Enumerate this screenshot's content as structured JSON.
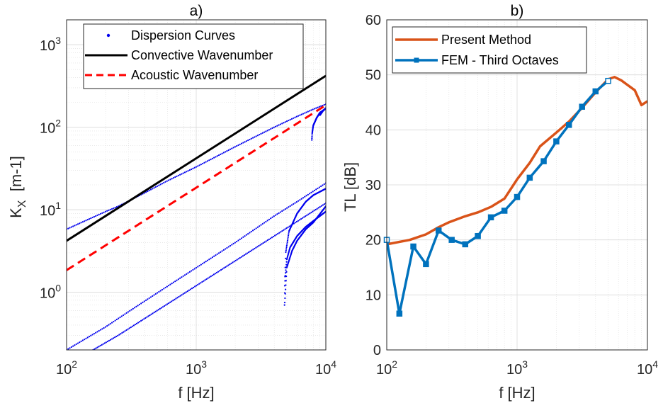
{
  "chart_data": [
    {
      "panel": "a",
      "type": "line",
      "title": "a)",
      "xlabel": "f [Hz]",
      "ylabel": "K_X [m-1]",
      "ylabel_main": "K",
      "ylabel_sub": "X",
      "ylabel_rest": "  [m-1]",
      "xscale": "log",
      "yscale": "log",
      "xlim": [
        100,
        10000
      ],
      "ylim": [
        0.2,
        2000
      ],
      "grid": true,
      "legend_position": "top",
      "x_ticks": [
        {
          "value": 100,
          "base": "10",
          "exp": "2"
        },
        {
          "value": 1000,
          "base": "10",
          "exp": "3"
        },
        {
          "value": 10000,
          "base": "10",
          "exp": "4"
        }
      ],
      "y_ticks": [
        {
          "value": 1,
          "base": "10",
          "exp": "0"
        },
        {
          "value": 10,
          "base": "10",
          "exp": "1"
        },
        {
          "value": 100,
          "base": "10",
          "exp": "2"
        },
        {
          "value": 1000,
          "base": "10",
          "exp": "3"
        }
      ],
      "series": [
        {
          "name": "Dispersion Curves",
          "style": "dots",
          "color": "#0000ee",
          "curves": [
            {
              "x": [
                100,
                200,
                250,
                300,
                400,
                600,
                1000,
                2000,
                4000,
                6000,
                8000,
                10000
              ],
              "y": [
                5.8,
                9.5,
                11.0,
                12.7,
                16.0,
                22.4,
                33.0,
                58.0,
                100.0,
                135.0,
                165.0,
                190.0
              ]
            },
            {
              "x": [
                160,
                250,
                400,
                600,
                1000,
                2000,
                4000,
                6000,
                10000
              ],
              "y": [
                0.2,
                0.3,
                0.48,
                0.72,
                1.2,
                2.4,
                4.8,
                7.2,
                12.0
              ]
            },
            {
              "x": [
                100,
                200,
                300,
                400,
                500,
                700,
                1000,
                2000,
                4000,
                6000,
                10000
              ],
              "y": [
                0.2,
                0.38,
                0.58,
                0.78,
                0.98,
                1.38,
                1.98,
                4.0,
                8.4,
                12.5,
                21.0
              ]
            },
            {
              "x": [
                4800,
                4850,
                5000,
                5300,
                6000,
                7000,
                8000,
                10000
              ],
              "y": [
                0.7,
                1.5,
                2.5,
                3.5,
                4.8,
                6.2,
                7.3,
                9.5
              ]
            },
            {
              "x": [
                4820,
                4900,
                5200,
                6000,
                7000,
                8000,
                10000
              ],
              "y": [
                1.2,
                3.0,
                5.5,
                9.0,
                12.5,
                15.0,
                18.0
              ]
            },
            {
              "x": [
                4820,
                5000,
                5500,
                6000,
                7000,
                8000,
                10000
              ],
              "y": [
                0.75,
                2.0,
                3.2,
                4.2,
                5.8,
                7.0,
                11.0
              ]
            },
            {
              "x": [
                7800,
                7850,
                8000,
                8500,
                9000,
                10000
              ],
              "y": [
                70,
                85,
                105,
                130,
                150,
                168
              ]
            },
            {
              "x": [
                9000,
                9500,
                10000
              ],
              "y": [
                140,
                158,
                170
              ]
            }
          ]
        },
        {
          "name": "Convective Wavenumber",
          "style": "solid",
          "color": "#000000",
          "x": [
            100,
            10000
          ],
          "y": [
            4.2,
            420
          ]
        },
        {
          "name": "Acoustic Wavenumber",
          "style": "dashed",
          "color": "#ff0000",
          "x": [
            100,
            10000
          ],
          "y": [
            1.85,
            185
          ]
        }
      ]
    },
    {
      "panel": "b",
      "type": "line",
      "title": "b)",
      "xlabel": "f [Hz]",
      "ylabel": "TL [dB]",
      "xscale": "log",
      "yscale": "linear",
      "xlim": [
        100,
        10000
      ],
      "ylim": [
        0,
        60
      ],
      "grid": true,
      "legend_position": "top-left",
      "x_ticks": [
        {
          "value": 100,
          "base": "10",
          "exp": "2"
        },
        {
          "value": 1000,
          "base": "10",
          "exp": "3"
        },
        {
          "value": 10000,
          "base": "10",
          "exp": "4"
        }
      ],
      "y_ticks": [
        0,
        10,
        20,
        30,
        40,
        50,
        60
      ],
      "series": [
        {
          "name": "Present Method",
          "style": "solid",
          "color": "#d95319",
          "x": [
            100,
            150,
            200,
            250,
            300,
            400,
            500,
            630,
            800,
            1000,
            1250,
            1500,
            2000,
            2500,
            3150,
            4000,
            5000,
            5600,
            6300,
            7000,
            8000,
            9000,
            10000
          ],
          "y": [
            19.2,
            20.0,
            21.0,
            22.3,
            23.2,
            24.3,
            25.0,
            26.0,
            27.5,
            31.0,
            34.0,
            37.0,
            39.5,
            41.5,
            44.0,
            46.8,
            49.2,
            49.6,
            49.0,
            48.2,
            47.2,
            44.5,
            45.2
          ]
        },
        {
          "name": "FEM - Third Octaves",
          "style": "solid-square-markers",
          "color": "#0072bd",
          "x": [
            100,
            125,
            160,
            200,
            250,
            315,
            400,
            500,
            630,
            800,
            1000,
            1250,
            1600,
            2000,
            2500,
            3150,
            4000,
            5000
          ],
          "y": [
            20.0,
            6.6,
            18.8,
            15.6,
            21.7,
            20.0,
            19.2,
            20.7,
            24.1,
            25.3,
            27.8,
            31.3,
            34.3,
            37.9,
            40.9,
            44.2,
            47.0,
            48.9
          ]
        }
      ]
    }
  ]
}
